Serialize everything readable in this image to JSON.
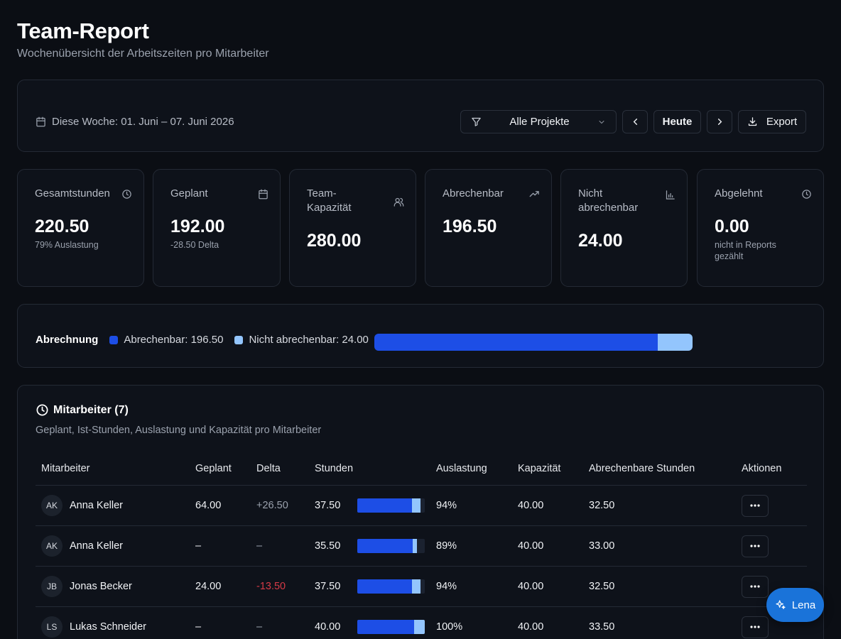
{
  "header": {
    "title": "Team-Report",
    "subtitle": "Wochenübersicht der Arbeitszeiten pro Mitarbeiter"
  },
  "toolbar": {
    "week_label": "Diese Woche: 01. Juni – 07. Juni 2026",
    "project_filter": "Alle Projekte",
    "today_label": "Heute",
    "export_label": "Export"
  },
  "stats": [
    {
      "label": "Gesamtstunden",
      "value": "220.50",
      "note": "79% Auslastung",
      "icon": "clock-icon"
    },
    {
      "label": "Geplant",
      "value": "192.00",
      "note": "-28.50 Delta",
      "icon": "calendar-icon"
    },
    {
      "label": "Team-Kapazität",
      "value": "280.00",
      "note": "",
      "icon": "users-icon"
    },
    {
      "label": "Abrechenbar",
      "value": "196.50",
      "note": "",
      "icon": "trending-up-icon"
    },
    {
      "label": "Nicht abrechenbar",
      "value": "24.00",
      "note": "",
      "icon": "bar-chart-icon"
    },
    {
      "label": "Abgelehnt",
      "value": "0.00",
      "note": "nicht in Reports gezählt",
      "icon": "clock-icon"
    }
  ],
  "billing": {
    "label": "Abrechnung",
    "billable_label": "Abrechenbar: 196.50",
    "non_billable_label": "Nicht abrechenbar: 24.00",
    "billable": 196.5,
    "non_billable": 24.0,
    "colors": {
      "billable": "#1d4ee6",
      "non_billable": "#93c5fd"
    }
  },
  "employees": {
    "title": "Mitarbeiter (7)",
    "subtitle": "Geplant, Ist-Stunden, Auslastung und Kapazität pro Mitarbeiter",
    "columns": [
      "Mitarbeiter",
      "Geplant",
      "Delta",
      "Stunden",
      "Auslastung",
      "Kapazität",
      "Abrechenbare Stunden",
      "Aktionen"
    ],
    "rows": [
      {
        "initials": "AK",
        "name": "Anna Keller",
        "planned": "64.00",
        "delta": "+26.50",
        "delta_type": "pos",
        "hours": "37.50",
        "hours_num": 37.5,
        "billable_num": 32.5,
        "utilization": "94%",
        "capacity": "40.00",
        "capacity_num": 40,
        "billable": "32.50"
      },
      {
        "initials": "AK",
        "name": "Anna Keller",
        "planned": "–",
        "delta": "–",
        "delta_type": "none",
        "hours": "35.50",
        "hours_num": 35.5,
        "billable_num": 33.0,
        "utilization": "89%",
        "capacity": "40.00",
        "capacity_num": 40,
        "billable": "33.00"
      },
      {
        "initials": "JB",
        "name": "Jonas Becker",
        "planned": "24.00",
        "delta": "-13.50",
        "delta_type": "neg",
        "hours": "37.50",
        "hours_num": 37.5,
        "billable_num": 32.5,
        "utilization": "94%",
        "capacity": "40.00",
        "capacity_num": 40,
        "billable": "32.50"
      },
      {
        "initials": "LS",
        "name": "Lukas Schneider",
        "planned": "–",
        "delta": "–",
        "delta_type": "none",
        "hours": "40.00",
        "hours_num": 40.0,
        "billable_num": 33.5,
        "utilization": "100%",
        "capacity": "40.00",
        "capacity_num": 40,
        "billable": "33.50"
      }
    ]
  },
  "assistant": {
    "label": "Lena"
  }
}
